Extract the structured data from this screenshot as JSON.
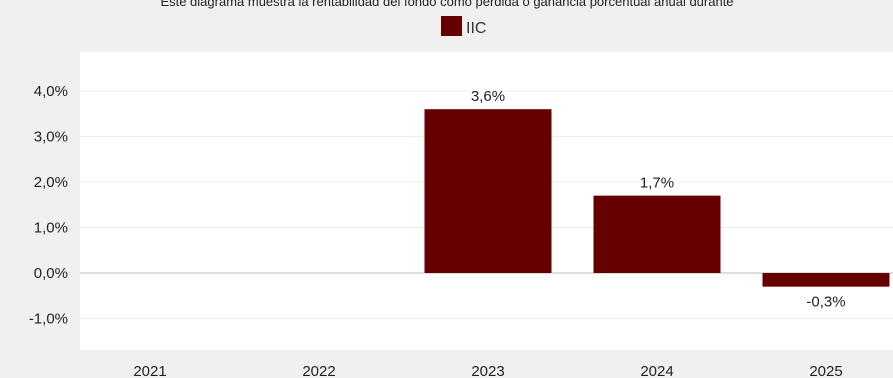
{
  "chart_data": {
    "type": "bar",
    "subtitle": "Este diagrama muestra la rentabilidad del fondo como pérdida o ganancia porcentual anual durante",
    "categories": [
      "2021",
      "2022",
      "2023",
      "2024",
      "2025"
    ],
    "series": [
      {
        "name": "IIC",
        "values": [
          null,
          null,
          3.6,
          1.7,
          -0.3
        ],
        "data_labels": [
          "",
          "",
          "3,6%",
          "1,7%",
          "-0,3%"
        ]
      }
    ],
    "y_ticks": [
      {
        "value": 4.0,
        "label": "4,0%"
      },
      {
        "value": 3.0,
        "label": "3,0%"
      },
      {
        "value": 2.0,
        "label": "2,0%"
      },
      {
        "value": 1.0,
        "label": "1,0%"
      },
      {
        "value": 0.0,
        "label": "0,0%"
      },
      {
        "value": -1.0,
        "label": "-1,0%"
      }
    ],
    "ylim": [
      -1.5,
      4.5
    ],
    "grid": true,
    "legend_position": "top-center",
    "colors": {
      "bar": "#660000",
      "plot_bg": "#ffffff",
      "page_bg": "#f0f0f0",
      "gridline": "#ececec",
      "zero_line": "#bbbbbb"
    }
  }
}
